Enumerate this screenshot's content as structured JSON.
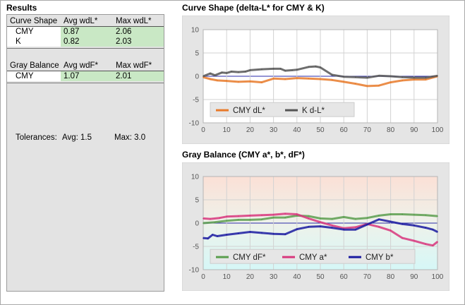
{
  "results": {
    "title": "Results",
    "curve_shape": {
      "headers": [
        "Curve Shape",
        "Avg wdL*",
        "Max wdL*"
      ],
      "rows": [
        {
          "label": "CMY",
          "avg": "0.87",
          "max": "2.06"
        },
        {
          "label": "K",
          "avg": "0.82",
          "max": "2.03"
        }
      ]
    },
    "gray_balance": {
      "headers": [
        "Gray Balance",
        "Avg wdF*",
        "Max wdF*"
      ],
      "rows": [
        {
          "label": "CMY",
          "avg": "1.07",
          "max": "2.01"
        }
      ]
    },
    "tolerances": {
      "label": "Tolerances:",
      "avg": "Avg: 1.5",
      "max": "Max: 3.0"
    }
  },
  "chart_data": [
    {
      "type": "line",
      "title": "Curve Shape (delta-L* for CMY & K)",
      "xlim": [
        0,
        100
      ],
      "ylim": [
        -10,
        10
      ],
      "x_ticks": [
        "0",
        "10",
        "20",
        "30",
        "40",
        "50",
        "60",
        "70",
        "80",
        "90",
        "100"
      ],
      "y_ticks": [
        "10",
        "5",
        "0",
        "-5",
        "-10"
      ],
      "grid": true,
      "legend": "bottom-left",
      "series": [
        {
          "name": "CMY dL*",
          "color": "#e87a2a",
          "x": [
            0,
            3,
            6,
            10,
            15,
            20,
            25,
            30,
            35,
            40,
            45,
            50,
            55,
            60,
            65,
            70,
            75,
            80,
            85,
            90,
            95,
            100
          ],
          "y": [
            -0.2,
            -0.6,
            -0.9,
            -1.0,
            -1.2,
            -1.1,
            -1.3,
            -0.5,
            -0.6,
            -0.4,
            -0.5,
            -0.6,
            -0.8,
            -1.2,
            -1.6,
            -2.1,
            -2.0,
            -1.3,
            -0.9,
            -0.7,
            -0.7,
            0.0
          ]
        },
        {
          "name": "K d-L*",
          "color": "#555555",
          "x": [
            0,
            3,
            5,
            8,
            10,
            12,
            15,
            18,
            20,
            25,
            30,
            33,
            35,
            38,
            40,
            45,
            48,
            50,
            55,
            60,
            65,
            70,
            75,
            80,
            85,
            90,
            95,
            100
          ],
          "y": [
            0.0,
            0.6,
            0.2,
            0.8,
            0.7,
            1.0,
            0.9,
            1.0,
            1.3,
            1.5,
            1.6,
            1.6,
            1.2,
            1.3,
            1.4,
            2.0,
            2.1,
            1.9,
            0.3,
            -0.1,
            -0.2,
            -0.3,
            0.1,
            0.0,
            -0.2,
            -0.3,
            -0.3,
            0.1
          ]
        }
      ]
    },
    {
      "type": "line",
      "title": "Gray Balance (CMY a*, b*, dF*)",
      "xlim": [
        0,
        100
      ],
      "ylim": [
        -10,
        10
      ],
      "x_ticks": [
        "0",
        "10",
        "20",
        "30",
        "40",
        "50",
        "60",
        "70",
        "80",
        "90",
        "100"
      ],
      "y_ticks": [
        "10",
        "5",
        "0",
        "-5",
        "-10"
      ],
      "grid": true,
      "legend": "bottom-left",
      "series": [
        {
          "name": "CMY dF*",
          "color": "#5a9e4e",
          "x": [
            0,
            5,
            10,
            15,
            20,
            25,
            30,
            35,
            40,
            45,
            50,
            55,
            60,
            65,
            70,
            75,
            80,
            85,
            90,
            95,
            100
          ],
          "y": [
            0.0,
            0.2,
            0.5,
            0.7,
            0.7,
            0.8,
            1.2,
            1.2,
            1.6,
            1.5,
            1.0,
            0.9,
            1.3,
            0.9,
            1.1,
            1.6,
            1.9,
            1.9,
            1.8,
            1.7,
            1.5
          ]
        },
        {
          "name": "CMY a*",
          "color": "#d8367c",
          "x": [
            0,
            3,
            7,
            10,
            15,
            20,
            25,
            30,
            35,
            40,
            45,
            50,
            55,
            60,
            65,
            70,
            75,
            80,
            85,
            90,
            95,
            98,
            100
          ],
          "y": [
            1.0,
            0.9,
            1.1,
            1.4,
            1.5,
            1.6,
            1.7,
            1.8,
            2.0,
            1.9,
            1.0,
            0.2,
            -0.5,
            -1.1,
            -0.9,
            -0.2,
            -0.8,
            -1.6,
            -3.2,
            -3.8,
            -4.5,
            -4.8,
            -4.0
          ]
        },
        {
          "name": "CMY b*",
          "color": "#1a1aa0",
          "x": [
            0,
            2,
            4,
            6,
            10,
            15,
            20,
            25,
            30,
            35,
            40,
            45,
            50,
            55,
            60,
            65,
            70,
            75,
            80,
            85,
            90,
            95,
            98,
            100
          ],
          "y": [
            -3.2,
            -3.3,
            -2.5,
            -2.8,
            -2.5,
            -2.2,
            -1.9,
            -2.1,
            -2.3,
            -2.4,
            -1.3,
            -0.8,
            -0.7,
            -1.0,
            -1.4,
            -1.4,
            -0.3,
            0.8,
            0.3,
            -0.2,
            -0.5,
            -1.0,
            -1.4,
            -1.9
          ]
        }
      ]
    }
  ]
}
